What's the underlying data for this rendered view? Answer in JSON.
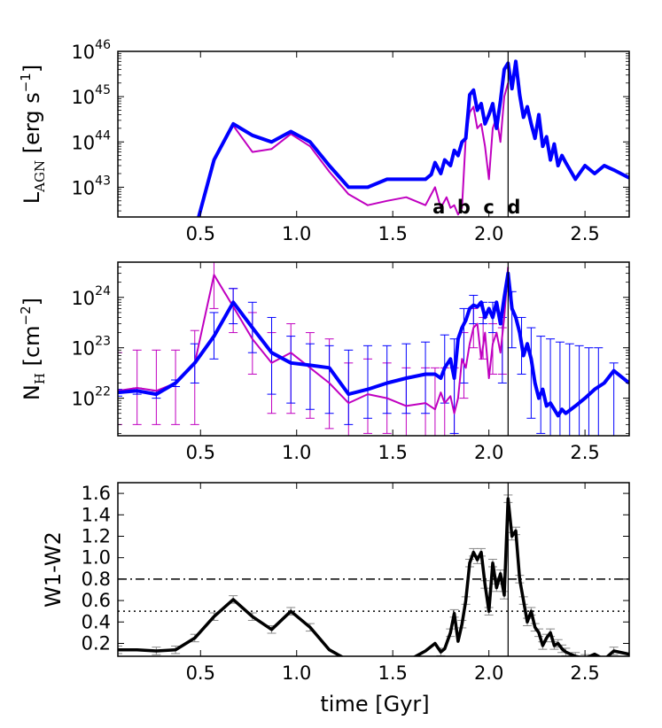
{
  "chart_data": [
    {
      "type": "line",
      "panel": "top",
      "ylabel": {
        "base": "L",
        "sub": "AGN",
        "units": " [erg s",
        "exp": "−1",
        "close": "]"
      },
      "yscale": "log",
      "ylim": [
        2.2e+42,
        1e+46
      ],
      "xlim": [
        0.07,
        2.73
      ],
      "x_ticks": [
        "0.5",
        "1.0",
        "1.5",
        "2.0",
        "2.5"
      ],
      "x_tick_values": [
        0.5,
        1.0,
        1.5,
        2.0,
        2.5
      ],
      "y_ticks": [
        {
          "value": 1e+43,
          "base": "10",
          "exp": "43"
        },
        {
          "value": 1e+44,
          "base": "10",
          "exp": "44"
        },
        {
          "value": 1e+45,
          "base": "10",
          "exp": "45"
        },
        {
          "value": 1e+46,
          "base": "10",
          "exp": "46"
        }
      ],
      "vline": 2.1,
      "annotations": [
        {
          "text": "a",
          "x": 1.74
        },
        {
          "text": "b",
          "x": 1.87
        },
        {
          "text": "c",
          "x": 2.0
        },
        {
          "text": "d",
          "x": 2.13
        }
      ],
      "series": [
        {
          "name": "blue",
          "color": "#0000ff",
          "width": 4,
          "x": [
            0.48,
            0.57,
            0.67,
            0.77,
            0.87,
            0.97,
            1.07,
            1.17,
            1.27,
            1.37,
            1.47,
            1.57,
            1.67,
            1.7,
            1.72,
            1.75,
            1.77,
            1.8,
            1.82,
            1.84,
            1.86,
            1.88,
            1.9,
            1.92,
            1.94,
            1.96,
            1.98,
            2.0,
            2.02,
            2.04,
            2.06,
            2.08,
            2.1,
            2.12,
            2.14,
            2.16,
            2.18,
            2.2,
            2.22,
            2.24,
            2.26,
            2.28,
            2.3,
            2.32,
            2.34,
            2.36,
            2.38,
            2.4,
            2.45,
            2.5,
            2.55,
            2.6,
            2.65,
            2.73
          ],
          "y": [
            1.5e+42,
            4e+43,
            2.5e+44,
            1.4e+44,
            1e+44,
            1.7e+44,
            1e+44,
            3e+43,
            1e+43,
            1e+43,
            1.5e+43,
            1.5e+43,
            1.5e+43,
            1.9e+43,
            3.5e+43,
            2e+43,
            4e+43,
            3e+43,
            6.5e+43,
            5e+43,
            1e+44,
            1.2e+44,
            1.1e+45,
            1.4e+45,
            5e+44,
            7e+44,
            2.5e+44,
            4e+44,
            7e+44,
            2e+44,
            8e+44,
            4e+45,
            5.5e+45,
            1.5e+45,
            6e+45,
            1.1e+45,
            3.5e+44,
            6e+44,
            2.5e+44,
            1.2e+44,
            4e+44,
            8e+43,
            1.3e+44,
            4e+43,
            9e+43,
            3e+43,
            5e+43,
            3.5e+43,
            1.5e+43,
            3e+43,
            2e+43,
            3e+43,
            2.4e+43,
            1.6e+43
          ]
        },
        {
          "name": "magenta",
          "color": "#c000c0",
          "width": 2,
          "x": [
            0.48,
            0.57,
            0.67,
            0.77,
            0.87,
            0.97,
            1.07,
            1.17,
            1.27,
            1.37,
            1.47,
            1.57,
            1.67,
            1.72,
            1.75,
            1.78,
            1.8,
            1.82,
            1.84,
            1.86,
            1.88,
            1.9,
            1.92,
            1.94,
            1.96,
            1.98,
            2.0,
            2.02,
            2.04,
            2.06,
            2.08,
            2.1
          ],
          "y": [
            1.5e+42,
            4e+43,
            2.3e+44,
            6e+43,
            7e+43,
            1.5e+44,
            8e+43,
            2.2e+43,
            7e+42,
            4e+42,
            5e+42,
            6e+42,
            4e+42,
            1e+43,
            3.5e+42,
            6e+42,
            3.5e+42,
            4e+42,
            2.5e+42,
            3.5e+42,
            1.3e+44,
            4.5e+44,
            6e+44,
            2e+44,
            2.5e+44,
            8e+43,
            1.5e+43,
            2e+44,
            3.5e+44,
            1e+44,
            1e+45,
            2e+45
          ]
        }
      ]
    },
    {
      "type": "line",
      "panel": "middle",
      "ylabel": {
        "base": "N",
        "sub": "H",
        "units": " [cm",
        "exp": "−2",
        "close": "]"
      },
      "yscale": "log",
      "ylim": [
        1.8e+21,
        5e+24
      ],
      "xlim": [
        0.07,
        2.73
      ],
      "x_ticks": [
        "0.5",
        "1.0",
        "1.5",
        "2.0",
        "2.5"
      ],
      "x_tick_values": [
        0.5,
        1.0,
        1.5,
        2.0,
        2.5
      ],
      "y_ticks": [
        {
          "value": 1e+22,
          "base": "10",
          "exp": "22"
        },
        {
          "value": 1e+23,
          "base": "10",
          "exp": "23"
        },
        {
          "value": 1e+24,
          "base": "10",
          "exp": "24"
        }
      ],
      "vline": 2.1,
      "series": [
        {
          "name": "blue",
          "color": "#0000ff",
          "width": 4,
          "x": [
            0.07,
            0.17,
            0.27,
            0.37,
            0.47,
            0.57,
            0.67,
            0.77,
            0.87,
            0.97,
            1.07,
            1.17,
            1.27,
            1.37,
            1.47,
            1.57,
            1.67,
            1.72,
            1.75,
            1.77,
            1.8,
            1.82,
            1.84,
            1.86,
            1.88,
            1.9,
            1.92,
            1.94,
            1.96,
            1.98,
            2.0,
            2.02,
            2.04,
            2.06,
            2.08,
            2.1,
            2.12,
            2.14,
            2.16,
            2.18,
            2.2,
            2.22,
            2.24,
            2.26,
            2.28,
            2.3,
            2.32,
            2.34,
            2.36,
            2.38,
            2.4,
            2.45,
            2.5,
            2.55,
            2.6,
            2.65,
            2.73
          ],
          "y": [
            1.3e+22,
            1.4e+22,
            1.2e+22,
            2e+22,
            5e+22,
            1.7e+23,
            8e+23,
            2.5e+23,
            8e+22,
            5e+22,
            4.5e+22,
            4e+22,
            1.2e+22,
            1.5e+22,
            2e+22,
            2.5e+22,
            3e+22,
            3e+22,
            2.5e+22,
            4e+22,
            6e+22,
            2.5e+22,
            1.5e+23,
            2.5e+23,
            3.5e+23,
            6e+23,
            7e+23,
            6.5e+23,
            8e+23,
            4e+23,
            6e+23,
            4e+23,
            8e+23,
            3e+23,
            1e+24,
            3e+24,
            6e+23,
            4e+23,
            2e+23,
            7e+22,
            1.2e+23,
            6e+22,
            2e+22,
            1e+22,
            1.5e+22,
            7e+21,
            8e+21,
            6e+21,
            4.5e+21,
            6e+21,
            5e+21,
            7e+21,
            1e+22,
            1.5e+22,
            2e+22,
            3.5e+22,
            2e+22
          ],
          "err_x": [
            0.07,
            0.17,
            0.27,
            0.37,
            0.47,
            0.57,
            0.67,
            0.77,
            0.87,
            0.97,
            1.07,
            1.17,
            1.27,
            1.37,
            1.47,
            1.57,
            1.67,
            1.77,
            1.82,
            1.87,
            1.92,
            1.97,
            2.02,
            2.07,
            2.12,
            2.17,
            2.22,
            2.27,
            2.32,
            2.37,
            2.42,
            2.47,
            2.52,
            2.57,
            2.65
          ],
          "err_y": [
            1.3e+22,
            1.4e+22,
            1.2e+22,
            2e+22,
            5e+22,
            1.7e+23,
            8e+23,
            2.5e+23,
            8e+22,
            5e+22,
            4.5e+22,
            4e+22,
            1.2e+22,
            1.5e+22,
            2e+22,
            2.5e+22,
            3e+22,
            4e+22,
            2.5e+22,
            2.5e+23,
            7e+23,
            6e+23,
            4e+23,
            2e+23,
            6e+23,
            2e+23,
            6e+22,
            1.5e+22,
            8e+21,
            6e+21,
            6e+21,
            8e+21,
            1.2e+22,
            1.7e+22,
            3.5e+22
          ],
          "err_lo": [
            1.1e+22,
            1.2e+22,
            1e+22,
            1.7e+22,
            2e+22,
            6e+22,
            3e+23,
            8e+22,
            1.2e+22,
            8e+21,
            6e+21,
            5e+21,
            3e+21,
            4e+21,
            5e+21,
            5e+21,
            5e+21,
            8e+21,
            2e+21,
            2e+22,
            3e+23,
            3e+23,
            2e+23,
            2e+22,
            1e+23,
            3e+22,
            4e+21,
            2e+21,
            1.8e+21,
            1.8e+21,
            1.8e+21,
            1.8e+21,
            1.8e+21,
            1.8e+21,
            1.8e+21
          ],
          "err_hi": [
            1.5e+22,
            1.6e+22,
            1.4e+22,
            2.3e+22,
            1.2e+23,
            5e+23,
            1.5e+24,
            8e+23,
            4e+23,
            1.7e+23,
            1.2e+23,
            1.1e+23,
            9e+22,
            1.1e+23,
            1.1e+23,
            1.2e+23,
            1.3e+23,
            1.8e+23,
            1.5e+23,
            6e+23,
            1.1e+24,
            8e+23,
            8e+23,
            4e+23,
            1.3e+24,
            4e+23,
            2.5e+23,
            1.7e+23,
            1.5e+23,
            1.3e+23,
            1.2e+23,
            1.1e+23,
            1e+23,
            1e+23,
            5e+22
          ]
        },
        {
          "name": "magenta",
          "color": "#c000c0",
          "width": 2,
          "x": [
            0.07,
            0.17,
            0.27,
            0.37,
            0.47,
            0.57,
            0.67,
            0.77,
            0.87,
            0.97,
            1.07,
            1.17,
            1.27,
            1.37,
            1.47,
            1.57,
            1.67,
            1.72,
            1.75,
            1.77,
            1.8,
            1.82,
            1.84,
            1.86,
            1.88,
            1.9,
            1.92,
            1.94,
            1.96,
            1.98,
            2.0,
            2.02,
            2.04,
            2.06,
            2.08,
            2.1
          ],
          "y": [
            1.4e+22,
            1.6e+22,
            1.4e+22,
            2e+22,
            5e+22,
            2.8e+24,
            6.5e+23,
            1.5e+23,
            5e+22,
            8e+22,
            4e+22,
            2e+22,
            8e+21,
            1.2e+22,
            1e+22,
            7e+21,
            8e+21,
            6e+21,
            1.3e+22,
            8e+21,
            1.1e+22,
            5e+21,
            1e+22,
            6e+22,
            4e+22,
            1.2e+23,
            2.5e+23,
            3e+23,
            6e+22,
            2e+23,
            2.5e+22,
            1.2e+23,
            2e+23,
            8e+22,
            4e+23,
            4e+24
          ],
          "err_x": [
            0.07,
            0.17,
            0.27,
            0.37,
            0.47,
            0.57,
            0.67,
            0.77,
            0.87,
            0.97,
            1.07,
            1.17,
            1.27,
            1.37,
            1.47,
            1.57,
            1.67,
            1.72,
            1.77,
            1.82,
            1.87,
            1.92,
            1.97,
            2.02,
            2.07
          ],
          "err_y": [
            1.4e+22,
            1.6e+22,
            1.4e+22,
            2e+22,
            5e+22,
            2.8e+24,
            6.5e+23,
            1.5e+23,
            5e+22,
            8e+22,
            4e+22,
            2e+22,
            8e+21,
            1.2e+22,
            1e+22,
            7e+21,
            8e+21,
            6e+21,
            8e+21,
            5e+21,
            6e+22,
            2.5e+23,
            2e+23,
            1.2e+23,
            8e+22
          ],
          "err_lo": [
            3e+21,
            3e+21,
            3e+21,
            3e+21,
            3e+21,
            6e+23,
            2e+23,
            3e+22,
            5e+21,
            5e+21,
            4e+21,
            2.5e+21,
            1.8e+21,
            2e+21,
            2e+21,
            1.8e+21,
            1.8e+21,
            1.8e+21,
            1.8e+21,
            1.8e+21,
            1e+22,
            1e+23,
            6e+22,
            3e+22,
            3e+22
          ],
          "err_hi": [
            8e+22,
            9e+22,
            9e+22,
            9e+22,
            2.2e+23,
            5.5e+24,
            1.5e+24,
            5e+23,
            2e+23,
            3e+23,
            2e+23,
            1.5e+23,
            5e+22,
            6e+22,
            5e+22,
            4e+22,
            4e+22,
            4e+22,
            4e+22,
            4e+22,
            2e+23,
            6e+23,
            4e+23,
            3e+23,
            2.5e+23
          ]
        }
      ]
    },
    {
      "type": "line",
      "panel": "bottom",
      "ylabel": {
        "text": "W1-W2"
      },
      "xlabel": "time [Gyr]",
      "ylim": [
        0.08,
        1.7
      ],
      "xlim": [
        0.07,
        2.73
      ],
      "x_ticks": [
        "0.5",
        "1.0",
        "1.5",
        "2.0",
        "2.5"
      ],
      "x_tick_values": [
        0.5,
        1.0,
        1.5,
        2.0,
        2.5
      ],
      "y_ticks": [
        {
          "value": 0.2,
          "label": "0.2"
        },
        {
          "value": 0.4,
          "label": "0.4"
        },
        {
          "value": 0.6,
          "label": "0.6"
        },
        {
          "value": 0.8,
          "label": "0.8"
        },
        {
          "value": 1.0,
          "label": "1.0"
        },
        {
          "value": 1.2,
          "label": "1.2"
        },
        {
          "value": 1.4,
          "label": "1.4"
        },
        {
          "value": 1.6,
          "label": "1.6"
        }
      ],
      "vline": 2.1,
      "hlines": [
        {
          "y": 0.8,
          "style": "dashdot"
        },
        {
          "y": 0.5,
          "style": "dotted"
        }
      ],
      "series": [
        {
          "name": "W1-W2",
          "color": "#000000",
          "width": 3.5,
          "x": [
            0.07,
            0.17,
            0.27,
            0.37,
            0.47,
            0.57,
            0.67,
            0.77,
            0.87,
            0.97,
            1.07,
            1.17,
            1.27,
            1.37,
            1.47,
            1.57,
            1.67,
            1.72,
            1.75,
            1.77,
            1.8,
            1.82,
            1.84,
            1.86,
            1.88,
            1.9,
            1.92,
            1.94,
            1.96,
            1.98,
            2.0,
            2.02,
            2.04,
            2.06,
            2.08,
            2.1,
            2.12,
            2.14,
            2.16,
            2.18,
            2.2,
            2.22,
            2.24,
            2.26,
            2.28,
            2.3,
            2.32,
            2.34,
            2.36,
            2.38,
            2.4,
            2.45,
            2.5,
            2.55,
            2.6,
            2.65,
            2.73
          ],
          "y": [
            0.14,
            0.14,
            0.13,
            0.14,
            0.25,
            0.45,
            0.61,
            0.45,
            0.33,
            0.5,
            0.35,
            0.14,
            0.04,
            0.03,
            0.02,
            0.03,
            0.13,
            0.2,
            0.12,
            0.15,
            0.3,
            0.48,
            0.22,
            0.38,
            0.6,
            0.95,
            1.05,
            0.98,
            1.05,
            0.75,
            0.5,
            0.95,
            0.72,
            0.85,
            0.65,
            1.55,
            1.2,
            1.25,
            0.8,
            0.6,
            0.4,
            0.5,
            0.35,
            0.3,
            0.18,
            0.25,
            0.3,
            0.18,
            0.2,
            0.15,
            0.12,
            0.08,
            0.06,
            0.1,
            0.05,
            0.13,
            0.1
          ],
          "err_x": [
            0.07,
            0.27,
            0.37,
            0.47,
            0.57,
            0.67,
            0.77,
            0.87,
            0.97,
            1.07,
            1.75,
            1.8,
            1.82,
            1.86,
            1.88,
            1.9,
            1.92,
            1.94,
            1.96,
            1.98,
            2.0,
            2.02,
            2.04,
            2.06,
            2.08,
            2.1,
            2.12,
            2.14,
            2.16,
            2.18,
            2.2,
            2.22,
            2.24,
            2.26,
            2.28,
            2.3,
            2.32,
            2.34,
            2.36,
            2.38,
            2.4,
            2.45,
            2.5,
            2.65
          ],
          "err_y": [
            0.14,
            0.13,
            0.14,
            0.25,
            0.45,
            0.61,
            0.45,
            0.33,
            0.5,
            0.35,
            0.12,
            0.3,
            0.48,
            0.38,
            0.6,
            0.95,
            1.05,
            0.98,
            1.05,
            0.75,
            0.5,
            0.95,
            0.72,
            0.85,
            0.65,
            1.55,
            1.2,
            1.25,
            0.8,
            0.6,
            0.4,
            0.5,
            0.35,
            0.3,
            0.18,
            0.25,
            0.3,
            0.18,
            0.2,
            0.15,
            0.12,
            0.08,
            0.06,
            0.13
          ],
          "err_half": 0.035
        }
      ]
    }
  ]
}
